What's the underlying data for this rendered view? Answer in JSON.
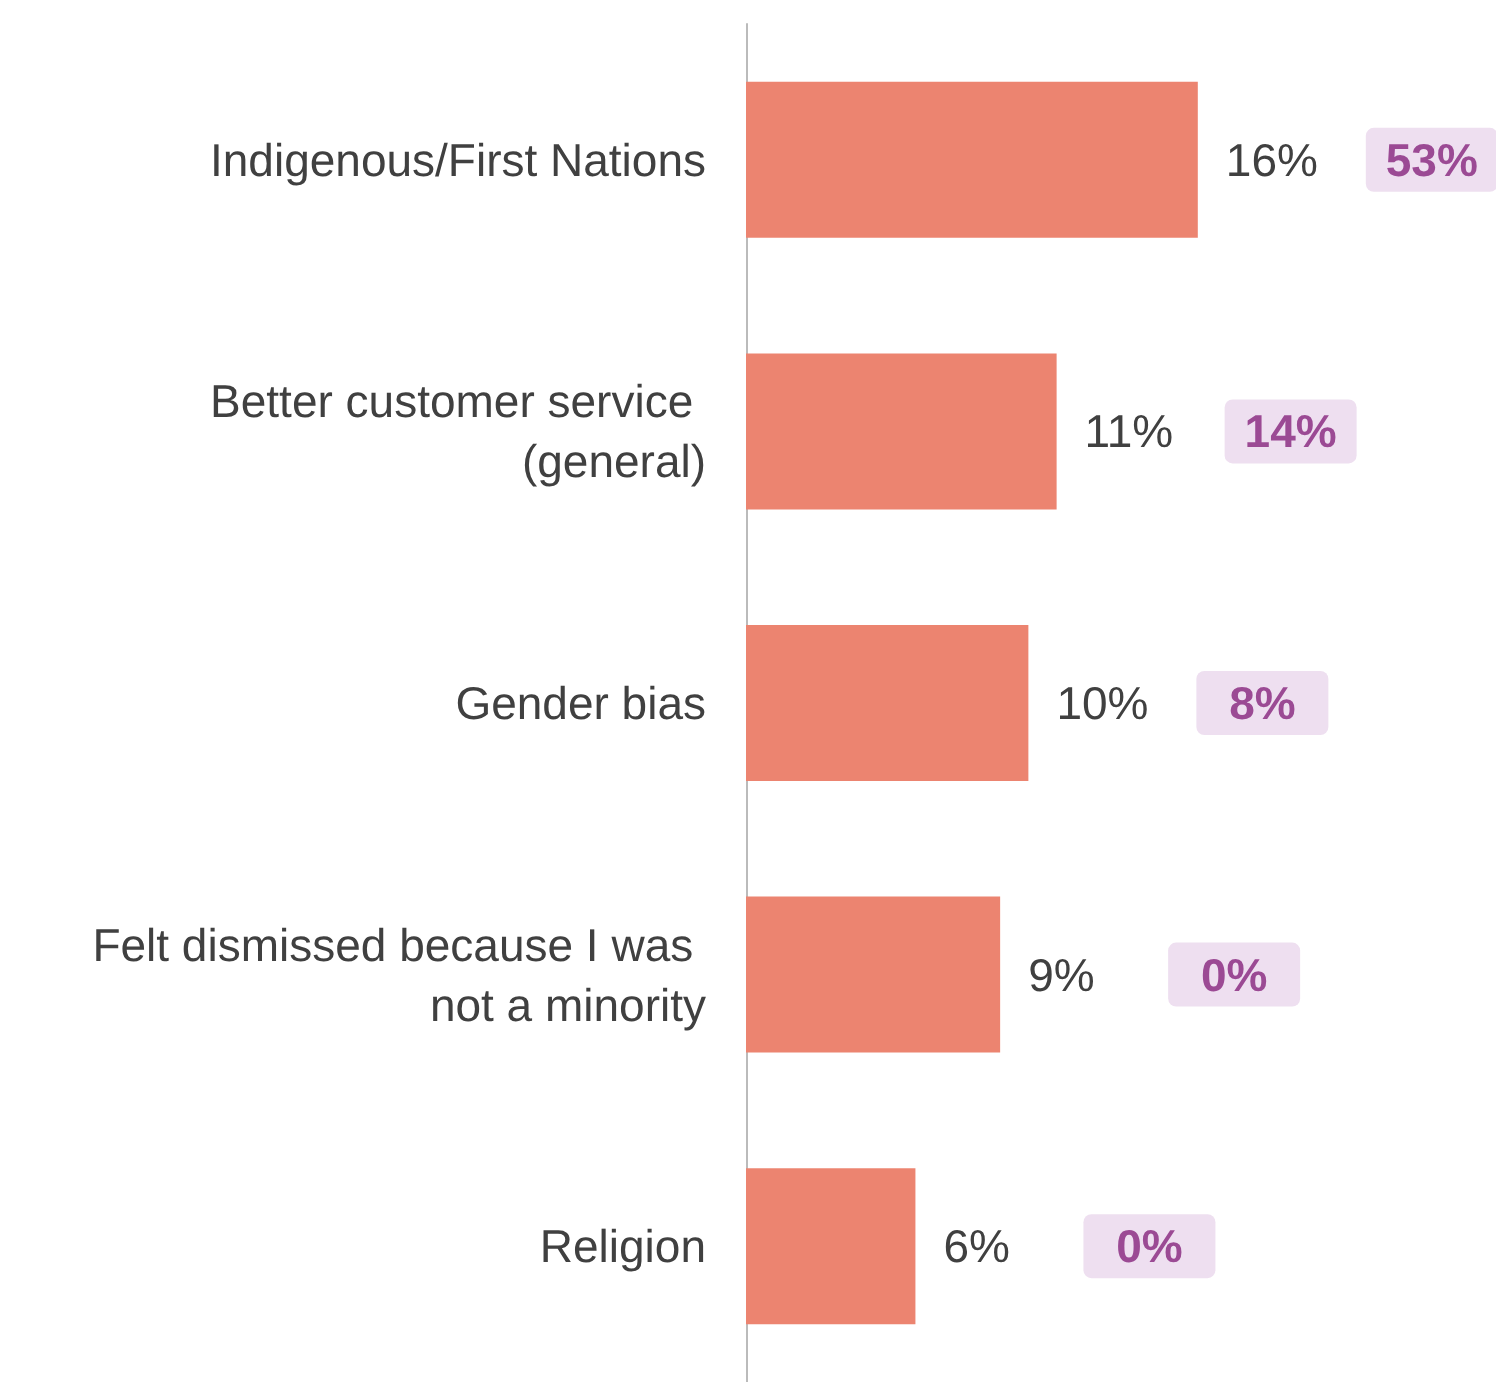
{
  "chart_data": {
    "type": "bar",
    "orientation": "horizontal",
    "categories": [
      "Indigenous/First Nations",
      "Better customer service (general)",
      "Gender bias",
      "Felt dismissed because I was not a minority",
      "Religion"
    ],
    "values": [
      16,
      11,
      10,
      9,
      6
    ],
    "color": "#ec8470",
    "value_labels": [
      "16%",
      "11%",
      "10%",
      "9%",
      "6%"
    ],
    "annotations": [
      "53%",
      "14%",
      "8%",
      "0%",
      "0%"
    ]
  }
}
